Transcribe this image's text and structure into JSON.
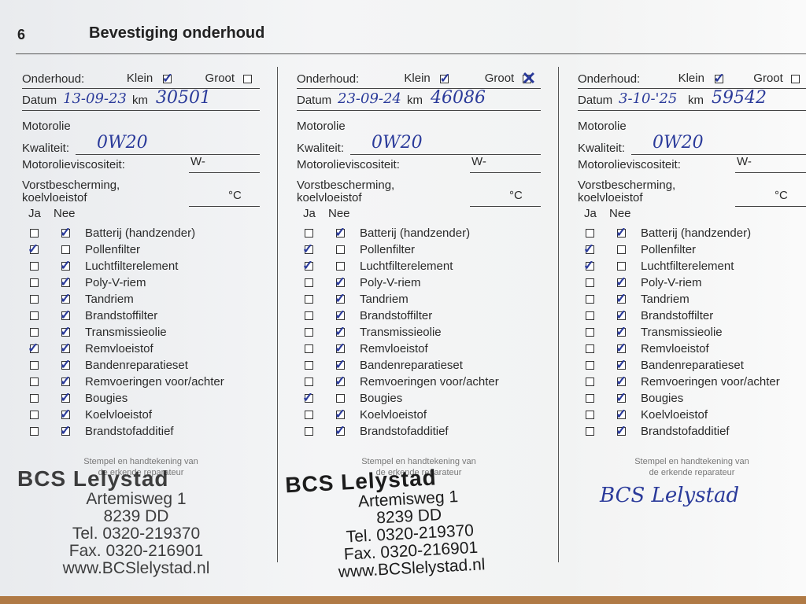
{
  "header": {
    "number": "6",
    "title": "Bevestiging onderhoud"
  },
  "labels": {
    "onderhoud": "Onderhoud:",
    "klein": "Klein",
    "groot": "Groot",
    "datum": "Datum",
    "km": "km",
    "motorolie": "Motorolie",
    "kwaliteit": "Kwaliteit:",
    "viscositeit": "Motorolieviscositeit:",
    "w": "W-",
    "vorst1": "Vorstbescherming,",
    "vorst2": "koelvloeistof",
    "celsius": "°C",
    "ja": "Ja",
    "nee": "Nee",
    "stempel1": "Stempel en handtekening van",
    "stempel2": "de erkende reparateur"
  },
  "items": [
    "Batterij (handzender)",
    "Pollenfilter",
    "Luchtfilterelement",
    "Poly-V-riem",
    "Tandriem",
    "Brandstoffilter",
    "Transmissieolie",
    "Remvloeistof",
    "Bandenreparatieset",
    "Remvoeringen voor/achter",
    "Bougies",
    "Koelvloeistof",
    "Brandstofadditief"
  ],
  "entries": [
    {
      "klein": true,
      "groot": false,
      "datum": "13-09-23",
      "km": "30501",
      "kwaliteit": "0W20",
      "ja": [
        false,
        true,
        false,
        false,
        false,
        false,
        false,
        true,
        false,
        false,
        false,
        false,
        false
      ],
      "nee": [
        true,
        false,
        true,
        true,
        true,
        true,
        true,
        true,
        true,
        true,
        true,
        true,
        true
      ],
      "stamp": {
        "name": "BCS Lelystad",
        "street": "Artemisweg 1",
        "zip": "8239 DD",
        "tel": "Tel. 0320-219370",
        "fax": "Fax. 0320-216901",
        "web": "www.BCSlelystad.nl"
      }
    },
    {
      "klein": true,
      "groot": true,
      "datum": "23-09-24",
      "km": "46086",
      "kwaliteit": "0W20",
      "ja": [
        false,
        true,
        true,
        false,
        false,
        false,
        false,
        false,
        false,
        false,
        true,
        false,
        false
      ],
      "nee": [
        true,
        false,
        false,
        true,
        true,
        true,
        true,
        true,
        true,
        true,
        false,
        true,
        true
      ],
      "stamp": {
        "name": "BCS Lelystad",
        "street": "Artemisweg 1",
        "zip": "8239 DD",
        "tel": "Tel. 0320-219370",
        "fax": "Fax. 0320-216901",
        "web": "www.BCSlelystad.nl"
      }
    },
    {
      "klein": true,
      "groot": false,
      "datum": "3-10-'25",
      "km": "59542",
      "kwaliteit": "0W20",
      "ja": [
        false,
        true,
        true,
        false,
        false,
        false,
        false,
        false,
        false,
        false,
        false,
        false,
        false
      ],
      "nee": [
        true,
        false,
        false,
        true,
        true,
        true,
        true,
        true,
        true,
        true,
        true,
        true,
        true
      ],
      "signature": "BCS Lelystad"
    }
  ],
  "colors": {
    "ink": "#2a3a9a",
    "print": "#2a2a2a"
  }
}
